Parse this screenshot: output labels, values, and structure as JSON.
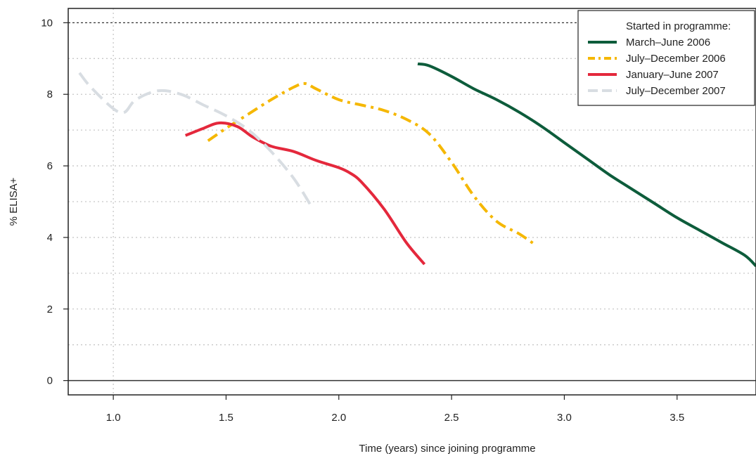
{
  "chart_data": {
    "type": "line",
    "title": "",
    "xlabel": "Time (years) since joining programme",
    "ylabel": "% ELISA+",
    "xlim": [
      0.8,
      3.85
    ],
    "ylim": [
      -0.4,
      10.4
    ],
    "x_ticks": [
      1.0,
      1.5,
      2.0,
      2.5,
      3.0,
      3.5
    ],
    "x_tick_labels": [
      "1.0",
      "1.5",
      "2.0",
      "2.5",
      "3.0",
      "3.5"
    ],
    "y_ticks": [
      0,
      2,
      4,
      6,
      8,
      10
    ],
    "y_tick_labels": [
      "0",
      "2",
      "4",
      "6",
      "8",
      "10"
    ],
    "grid": true,
    "horizontal_gridlines": [
      1,
      2,
      3,
      4,
      5,
      6,
      7,
      8,
      9
    ],
    "vertical_gridlines": [
      1.0
    ],
    "reference_line": 10,
    "legend": {
      "title": "Started in programme:",
      "placement": "top-right"
    },
    "series": [
      {
        "name": "March–June 2006",
        "color": "#0d5c3b",
        "dash": "solid",
        "x": [
          2.35,
          2.4,
          2.5,
          2.6,
          2.7,
          2.8,
          2.9,
          3.0,
          3.1,
          3.2,
          3.3,
          3.4,
          3.5,
          3.6,
          3.7,
          3.8,
          3.85
        ],
        "y": [
          8.85,
          8.8,
          8.5,
          8.15,
          7.85,
          7.5,
          7.1,
          6.65,
          6.2,
          5.75,
          5.35,
          4.95,
          4.55,
          4.2,
          3.85,
          3.5,
          3.2
        ]
      },
      {
        "name": "July–December 2006",
        "color": "#f5b700",
        "dash": "dash-dot",
        "x": [
          1.42,
          1.5,
          1.6,
          1.7,
          1.8,
          1.85,
          1.9,
          2.0,
          2.1,
          2.2,
          2.3,
          2.4,
          2.5,
          2.6,
          2.7,
          2.8,
          2.87
        ],
        "y": [
          6.7,
          7.05,
          7.45,
          7.85,
          8.2,
          8.3,
          8.15,
          7.85,
          7.7,
          7.55,
          7.3,
          6.9,
          6.1,
          5.15,
          4.45,
          4.1,
          3.8
        ]
      },
      {
        "name": "January–June 2007",
        "color": "#e4283c",
        "dash": "solid",
        "x": [
          1.32,
          1.4,
          1.47,
          1.55,
          1.62,
          1.7,
          1.8,
          1.9,
          2.0,
          2.05,
          2.1,
          2.2,
          2.3,
          2.38
        ],
        "y": [
          6.85,
          7.05,
          7.2,
          7.1,
          6.8,
          6.55,
          6.4,
          6.15,
          5.95,
          5.8,
          5.55,
          4.8,
          3.85,
          3.25
        ]
      },
      {
        "name": "July–December 2007",
        "color": "#d8dde2",
        "dash": "long-dash",
        "x": [
          0.85,
          0.9,
          1.0,
          1.05,
          1.1,
          1.2,
          1.3,
          1.4,
          1.5,
          1.6,
          1.7,
          1.8,
          1.88
        ],
        "y": [
          8.6,
          8.2,
          7.6,
          7.5,
          7.85,
          8.1,
          8.0,
          7.7,
          7.4,
          7.0,
          6.4,
          5.65,
          4.85
        ]
      }
    ]
  }
}
